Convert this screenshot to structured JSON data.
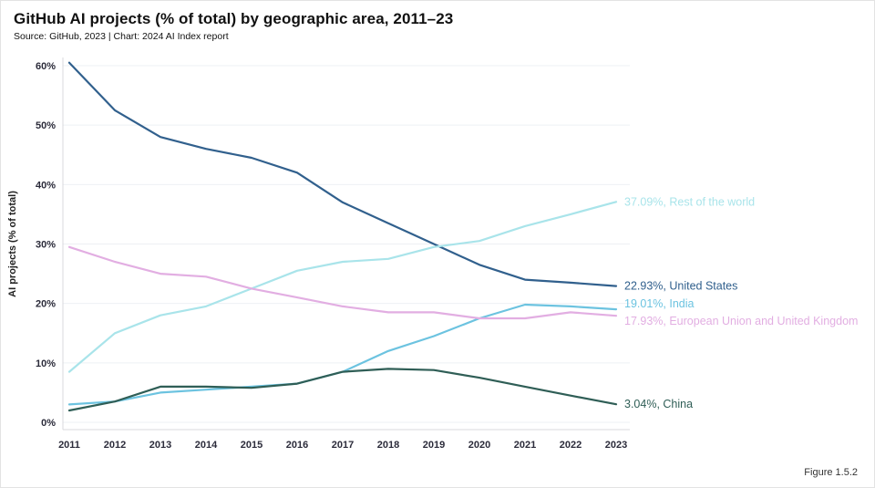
{
  "title": "GitHub AI projects (% of total) by geographic area, 2011–23",
  "source": "Source: GitHub, 2023 | Chart: 2024 AI Index report",
  "figure_label": "Figure 1.5.2",
  "chart_data": {
    "type": "line",
    "x": [
      2011,
      2012,
      2013,
      2014,
      2015,
      2016,
      2017,
      2018,
      2019,
      2020,
      2021,
      2022,
      2023
    ],
    "title": "GitHub AI projects (% of total) by geographic area, 2011–23",
    "xlabel": "",
    "ylabel": "AI projects (% of total)",
    "ylim": [
      0,
      60
    ],
    "y_ticks": [
      0,
      10,
      20,
      30,
      40,
      50,
      60
    ],
    "y_tick_labels": [
      "0%",
      "10%",
      "20%",
      "30%",
      "40%",
      "50%",
      "60%"
    ],
    "grid": true,
    "legend_position": "end-of-line-labels",
    "series": [
      {
        "name": "United States",
        "label": "22.93%, United States",
        "color": "#31608d",
        "label_dy": 0,
        "values": [
          60.5,
          52.5,
          48.0,
          46.0,
          44.5,
          42.0,
          37.0,
          33.5,
          30.0,
          26.5,
          24.0,
          23.5,
          22.93
        ]
      },
      {
        "name": "Rest of the world",
        "label": "37.09%, Rest of the world",
        "color": "#a9e4ea",
        "label_dy": 0,
        "values": [
          8.5,
          15.0,
          18.0,
          19.5,
          22.5,
          25.5,
          27.0,
          27.5,
          29.5,
          30.5,
          33.0,
          35.0,
          37.09
        ]
      },
      {
        "name": "India",
        "label": "19.01%, India",
        "color": "#6cc3e0",
        "label_dy": -6,
        "values": [
          3.0,
          3.5,
          5.0,
          5.5,
          6.0,
          6.5,
          8.5,
          12.0,
          14.5,
          17.5,
          19.8,
          19.5,
          19.01
        ]
      },
      {
        "name": "European Union and United Kingdom",
        "label": "17.93%, European Union and United Kingdom",
        "color": "#e2aee2",
        "label_dy": 6,
        "values": [
          29.5,
          27.0,
          25.0,
          24.5,
          22.5,
          21.0,
          19.5,
          18.5,
          18.5,
          17.5,
          17.5,
          18.5,
          17.93
        ]
      },
      {
        "name": "China",
        "label": "3.04%, China",
        "color": "#2f5e56",
        "label_dy": 0,
        "values": [
          2.0,
          3.5,
          6.0,
          6.0,
          5.8,
          6.5,
          8.5,
          9.0,
          8.8,
          7.5,
          6.0,
          4.5,
          3.04
        ]
      }
    ]
  }
}
